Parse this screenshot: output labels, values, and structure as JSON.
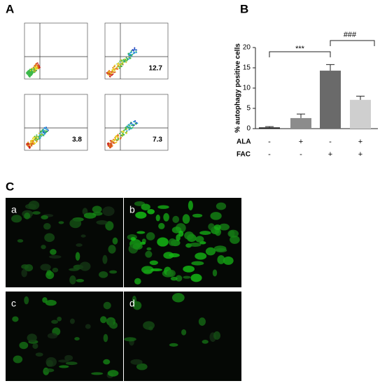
{
  "panel_labels": [
    "A",
    "B",
    "C"
  ],
  "flow_plots": [
    {
      "value_label": null
    },
    {
      "value_label": "12.7"
    },
    {
      "value_label": "3.8"
    },
    {
      "value_label": "7.3"
    }
  ],
  "micrographs": [
    "a",
    "b",
    "c",
    "d"
  ],
  "chart_data": {
    "type": "bar",
    "ylabel": "% autophagy positive cells",
    "values": [
      0.3,
      2.6,
      14.3,
      7.1
    ],
    "errors": [
      0.2,
      1.0,
      1.5,
      0.9
    ],
    "colors": [
      "#1a1a1a",
      "#8c8c8c",
      "#6a6a6a",
      "#cfcfcf"
    ],
    "conditions": [
      {
        "name": "ALA",
        "labels": [
          "-",
          "+",
          "-",
          "+"
        ]
      },
      {
        "name": "FAC",
        "labels": [
          "-",
          "-",
          "+",
          "+"
        ]
      }
    ],
    "annotations": [
      "***",
      "###"
    ],
    "ylim": [
      0,
      20
    ],
    "yticks": [
      0,
      5,
      10,
      15,
      20
    ]
  }
}
